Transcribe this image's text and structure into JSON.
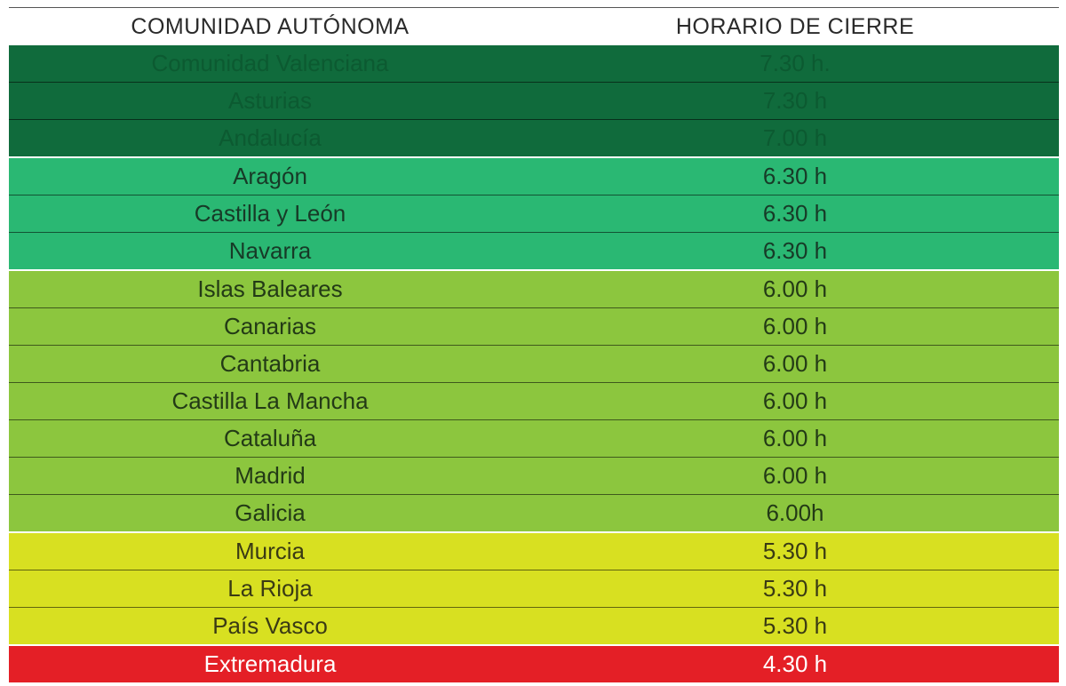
{
  "header": {
    "col_region": "COMUNIDAD AUTÓNOMA",
    "col_time": "HORARIO DE CIERRE"
  },
  "colors": {
    "dark_green": "#106b3c",
    "teal_green": "#2ab873",
    "light_green": "#8cc63e",
    "yellow_green": "#d8e021",
    "red": "#e41f26",
    "text_dark": "#1f3a1f",
    "text_white": "#ffffff"
  },
  "rows": [
    {
      "region": "Comunidad Valenciana",
      "time": "7.30 h.",
      "tier": "dark_green",
      "text": "#0c5a31"
    },
    {
      "region": "Asturias",
      "time": "7.30 h",
      "tier": "dark_green",
      "text": "#0c5a31"
    },
    {
      "region": "Andalucía",
      "time": "7.00 h",
      "tier": "dark_green",
      "text": "#0c5a31",
      "group_end": true
    },
    {
      "region": "Aragón",
      "time": "6.30 h",
      "tier": "teal_green",
      "text": "#173a27"
    },
    {
      "region": "Castilla y León",
      "time": "6.30 h",
      "tier": "teal_green",
      "text": "#173a27"
    },
    {
      "region": "Navarra",
      "time": "6.30 h",
      "tier": "teal_green",
      "text": "#173a27",
      "group_end": true
    },
    {
      "region": "Islas Baleares",
      "time": "6.00 h",
      "tier": "light_green",
      "text": "#233a16"
    },
    {
      "region": "Canarias",
      "time": "6.00 h",
      "tier": "light_green",
      "text": "#233a16"
    },
    {
      "region": "Cantabria",
      "time": "6.00 h",
      "tier": "light_green",
      "text": "#233a16"
    },
    {
      "region": "Castilla La Mancha",
      "time": "6.00 h",
      "tier": "light_green",
      "text": "#233a16"
    },
    {
      "region": "Cataluña",
      "time": "6.00 h",
      "tier": "light_green",
      "text": "#233a16"
    },
    {
      "region": "Madrid",
      "time": "6.00 h",
      "tier": "light_green",
      "text": "#233a16"
    },
    {
      "region": "Galicia",
      "time": "6.00h",
      "tier": "light_green",
      "text": "#233a16",
      "group_end": true
    },
    {
      "region": "Murcia",
      "time": "5.30 h",
      "tier": "yellow_green",
      "text": "#3a3a14"
    },
    {
      "region": "La Rioja",
      "time": "5.30 h",
      "tier": "yellow_green",
      "text": "#3a3a14"
    },
    {
      "region": "País Vasco",
      "time": "5.30 h",
      "tier": "yellow_green",
      "text": "#3a3a14",
      "group_end": true
    },
    {
      "region": "Extremadura",
      "time": "4.30 h",
      "tier": "red",
      "text": "#ffffff"
    }
  ]
}
